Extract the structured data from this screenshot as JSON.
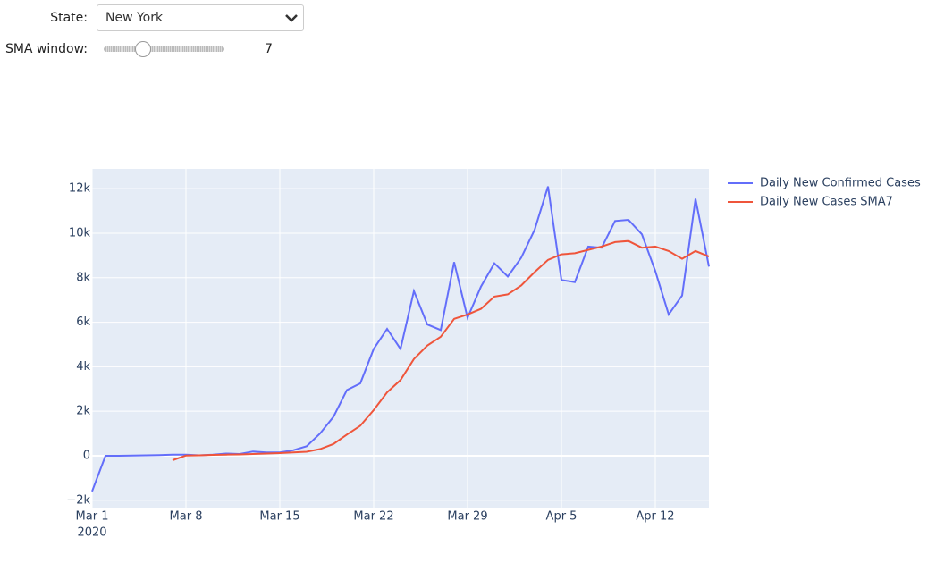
{
  "controls": {
    "state_label": "State:",
    "state_value": "New York",
    "sma_label": "SMA window:",
    "sma_value": 7
  },
  "chart_data": {
    "type": "line",
    "x": [
      "2020-03-01",
      "2020-03-02",
      "2020-03-03",
      "2020-03-04",
      "2020-03-05",
      "2020-03-06",
      "2020-03-07",
      "2020-03-08",
      "2020-03-09",
      "2020-03-10",
      "2020-03-11",
      "2020-03-12",
      "2020-03-13",
      "2020-03-14",
      "2020-03-15",
      "2020-03-16",
      "2020-03-17",
      "2020-03-18",
      "2020-03-19",
      "2020-03-20",
      "2020-03-21",
      "2020-03-22",
      "2020-03-23",
      "2020-03-24",
      "2020-03-25",
      "2020-03-26",
      "2020-03-27",
      "2020-03-28",
      "2020-03-29",
      "2020-03-30",
      "2020-03-31",
      "2020-04-01",
      "2020-04-02",
      "2020-04-03",
      "2020-04-04",
      "2020-04-05",
      "2020-04-06",
      "2020-04-07",
      "2020-04-08",
      "2020-04-09",
      "2020-04-10",
      "2020-04-11",
      "2020-04-12",
      "2020-04-13",
      "2020-04-14",
      "2020-04-15",
      "2020-04-16"
    ],
    "series": [
      {
        "name": "Daily New Confirmed Cases",
        "color": "#636efa",
        "values": [
          -1600,
          0,
          0,
          10,
          20,
          30,
          50,
          50,
          20,
          50,
          100,
          80,
          190,
          150,
          150,
          250,
          430,
          1000,
          1750,
          2950,
          3250,
          4800,
          5700,
          4800,
          7400,
          5900,
          5650,
          8700,
          6200,
          7600,
          8650,
          8050,
          8900,
          10150,
          12100,
          7900,
          7800,
          9400,
          9350,
          10550,
          10600,
          9950,
          8300,
          6350,
          7200,
          11550,
          8500
        ]
      },
      {
        "name": "Daily New Cases SMA7",
        "color": "#EF553B",
        "values": [
          null,
          null,
          null,
          null,
          null,
          null,
          -200,
          10,
          20,
          40,
          50,
          60,
          80,
          100,
          120,
          150,
          180,
          300,
          530,
          950,
          1350,
          2050,
          2850,
          3400,
          4350,
          4950,
          5350,
          6150,
          6350,
          6600,
          7150,
          7250,
          7650,
          8250,
          8800,
          9050,
          9100,
          9250,
          9400,
          9600,
          9650,
          9350,
          9400,
          9200,
          8850,
          9200,
          8950
        ]
      }
    ],
    "xlim": [
      "2020-03-01",
      "2020-04-16"
    ],
    "xticks": [
      {
        "value": "2020-03-01",
        "label": "Mar 1"
      },
      {
        "value": "2020-03-08",
        "label": "Mar 8"
      },
      {
        "value": "2020-03-15",
        "label": "Mar 15"
      },
      {
        "value": "2020-03-22",
        "label": "Mar 22"
      },
      {
        "value": "2020-03-29",
        "label": "Mar 29"
      },
      {
        "value": "2020-04-05",
        "label": "Apr 5"
      },
      {
        "value": "2020-04-12",
        "label": "Apr 12"
      }
    ],
    "x_year_label": "2020",
    "ylim": [
      -2330,
      12890
    ],
    "yticks": [
      {
        "value": -2000,
        "label": "−2k"
      },
      0,
      {
        "value": 2000,
        "label": "2k"
      },
      {
        "value": 4000,
        "label": "4k"
      },
      {
        "value": 6000,
        "label": "6k"
      },
      {
        "value": 8000,
        "label": "8k"
      },
      {
        "value": 10000,
        "label": "10k"
      },
      {
        "value": 12000,
        "label": "12k"
      }
    ],
    "grid": true
  }
}
